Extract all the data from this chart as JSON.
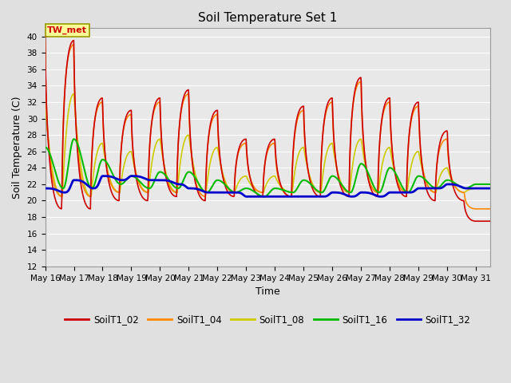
{
  "title": "Soil Temperature Set 1",
  "xlabel": "Time",
  "ylabel": "Soil Temperature (C)",
  "ylim": [
    12,
    41
  ],
  "yticks": [
    12,
    14,
    16,
    18,
    20,
    22,
    24,
    26,
    28,
    30,
    32,
    34,
    36,
    38,
    40
  ],
  "xlim": [
    0,
    15.5
  ],
  "background_color": "#e0e0e0",
  "plot_bg_color": "#e8e8e8",
  "figsize": [
    6.4,
    4.8
  ],
  "dpi": 100,
  "series": {
    "SoilT1_02": {
      "color": "#cc0000",
      "linewidth": 1.2
    },
    "SoilT1_04": {
      "color": "#ff8800",
      "linewidth": 1.2
    },
    "SoilT1_08": {
      "color": "#cccc00",
      "linewidth": 1.2
    },
    "SoilT1_16": {
      "color": "#00bb00",
      "linewidth": 1.5
    },
    "SoilT1_32": {
      "color": "#0000cc",
      "linewidth": 2.0
    }
  },
  "annotation": {
    "text": "TW_met",
    "fontsize": 8,
    "color": "#cc0000",
    "bg_color": "#ffff99",
    "border_color": "#999900"
  },
  "day_peaks_02": [
    40.0,
    19.0,
    39.5,
    19.0,
    32.5,
    20.0,
    31.0,
    20.0,
    32.5,
    20.5,
    33.5,
    20.0,
    31.0,
    20.5,
    27.5,
    20.5,
    27.5,
    20.5,
    31.5,
    20.5,
    32.5,
    20.5,
    35.0,
    20.5,
    32.5,
    20.5,
    32.0,
    20.0,
    28.5,
    20.0,
    17.5
  ],
  "day_peaks_04": [
    39.5,
    20.5,
    39.0,
    20.5,
    32.0,
    21.0,
    30.5,
    21.0,
    32.0,
    21.0,
    33.0,
    20.5,
    30.5,
    21.0,
    27.0,
    21.0,
    27.0,
    20.5,
    31.0,
    21.0,
    32.0,
    21.0,
    34.5,
    21.0,
    32.0,
    21.0,
    31.5,
    21.0,
    27.5,
    21.0,
    19.0
  ],
  "day_peaks_08": [
    32.0,
    20.5,
    33.0,
    20.5,
    27.0,
    21.0,
    26.0,
    21.0,
    27.5,
    21.0,
    28.0,
    21.0,
    26.5,
    21.0,
    23.0,
    21.0,
    23.0,
    21.0,
    26.5,
    21.0,
    27.0,
    21.0,
    27.5,
    21.0,
    26.5,
    21.0,
    26.0,
    21.0,
    24.0,
    21.0,
    21.5
  ],
  "day_peaks_16": [
    26.5,
    21.5,
    27.5,
    21.5,
    25.0,
    22.0,
    23.0,
    21.5,
    23.5,
    21.5,
    23.5,
    21.0,
    22.5,
    21.0,
    21.5,
    20.5,
    21.5,
    21.0,
    22.5,
    21.0,
    23.0,
    21.0,
    24.5,
    21.0,
    24.0,
    21.0,
    23.0,
    21.5,
    22.5,
    21.5,
    22.0
  ],
  "day_peaks_32": [
    21.5,
    21.0,
    22.5,
    21.5,
    23.0,
    22.5,
    23.0,
    22.5,
    22.5,
    22.0,
    21.5,
    21.0,
    21.0,
    21.0,
    20.5,
    20.5,
    20.5,
    20.5,
    20.5,
    20.5,
    21.0,
    20.5,
    21.0,
    20.5,
    21.0,
    21.0,
    21.5,
    21.5,
    22.0,
    21.5,
    21.5
  ]
}
